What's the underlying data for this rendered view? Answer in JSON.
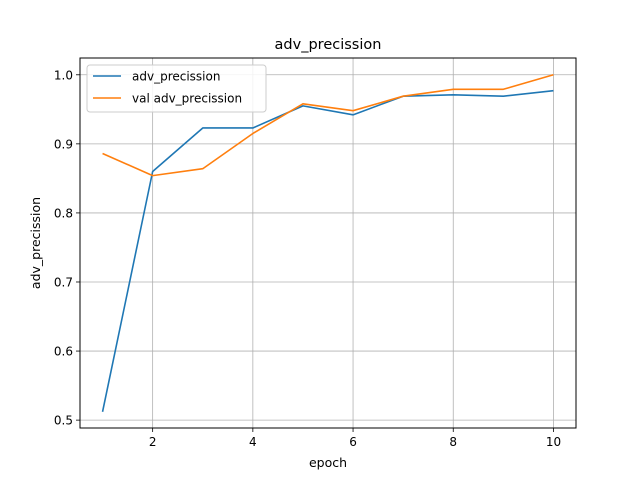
{
  "chart_data": {
    "type": "line",
    "title": "adv_precission",
    "xlabel": "epoch",
    "ylabel": "adv_precission",
    "x": [
      1,
      2,
      3,
      4,
      5,
      6,
      7,
      8,
      9,
      10
    ],
    "xlim": [
      0.55,
      10.45
    ],
    "ylim": [
      0.4886,
      1.0243
    ],
    "xticks": [
      2,
      4,
      6,
      8,
      10
    ],
    "yticks": [
      0.5,
      0.6,
      0.7,
      0.8,
      0.9,
      1.0
    ],
    "ytick_labels": [
      "0.5",
      "0.6",
      "0.7",
      "0.8",
      "0.9",
      "1.0"
    ],
    "grid": true,
    "legend_position": "upper-left",
    "series": [
      {
        "name": "adv_precission",
        "color": "#1f77b4",
        "values": [
          0.512,
          0.86,
          0.923,
          0.923,
          0.955,
          0.942,
          0.969,
          0.971,
          0.969,
          0.977
        ]
      },
      {
        "name": "val adv_precission",
        "color": "#ff7f0e",
        "values": [
          0.886,
          0.854,
          0.864,
          0.915,
          0.958,
          0.948,
          0.969,
          0.979,
          0.979,
          1.0
        ]
      }
    ]
  }
}
